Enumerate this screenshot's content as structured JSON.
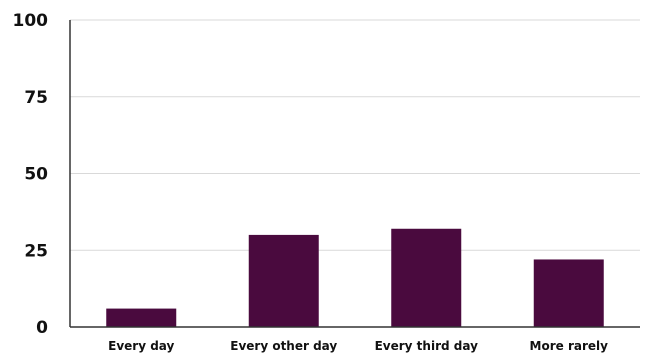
{
  "chart_data": {
    "type": "bar",
    "categories": [
      "Every day",
      "Every other day",
      "Every third day",
      "More rarely"
    ],
    "values": [
      6,
      30,
      32,
      22
    ],
    "ylim": [
      0,
      100
    ],
    "yticks": [
      "0",
      "25",
      "50",
      "75",
      "100"
    ],
    "grid": true,
    "bar_color": "#4a0a3e",
    "grid_color": "#d9d9d9",
    "axis_color": "#333333"
  }
}
